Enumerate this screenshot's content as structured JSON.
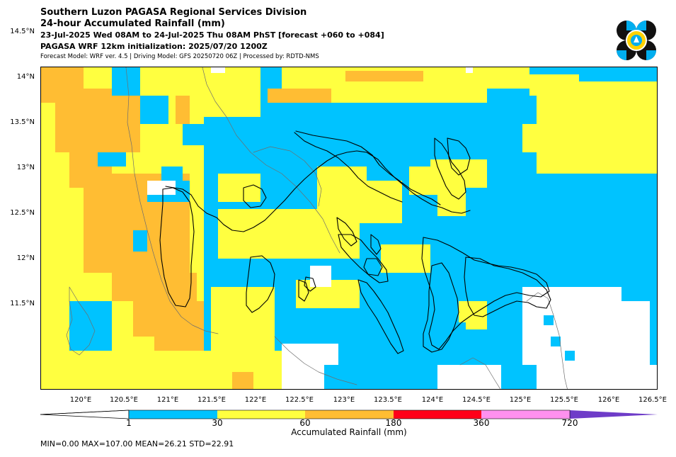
{
  "header": {
    "line1": "Southern Luzon PAGASA Regional Services Division",
    "line2": "24-hour Accumulated Rainfall (mm)",
    "line3": "23-Jul-2025 Wed 08AM to 24-Jul-2025 Thu 08AM PhST [forecast +060 to +084]",
    "line4": "PAGASA WRF 12km initialization: 2025/07/20 1200Z",
    "line5": "Forecast Model: WRF ver. 4.5 | Driving Model: GFS 20250720 06Z | Processed by: RDTD-NMS"
  },
  "map": {
    "lat_labels": [
      "14.5°N",
      "14°N",
      "13.5°N",
      "13°N",
      "12.5°N",
      "12°N",
      "11.5°N"
    ],
    "lon_labels": [
      "120°E",
      "120.5°E",
      "121°E",
      "121.5°E",
      "122°E",
      "122.5°E",
      "123°E",
      "123.5°E",
      "124°E",
      "124.5°E",
      "125°E",
      "125.5°E",
      "126°E",
      "126.5°E"
    ],
    "colors": {
      "none": "#ffffff",
      "light": "#00c3ff",
      "moderate": "#ffff40",
      "heavy": "#ffbd33",
      "coast": "#000000",
      "minor_coast": "#6e6e6e"
    }
  },
  "colorbar": {
    "ticks": [
      "1",
      "30",
      "60",
      "180",
      "360",
      "720"
    ],
    "colors": [
      "#00c3ff",
      "#ffff40",
      "#ffbd33",
      "#ff0019",
      "#ff91ef",
      "#6e3cc8"
    ],
    "label": "Accumulated Rainfall (mm)"
  },
  "stats": {
    "text": "MIN=0.00   MAX=107.00   MEAN=26.21   STD=22.91"
  },
  "logo": {
    "name": "pagasa-logo",
    "colors": [
      "#111111",
      "#00aeef",
      "#ffd200"
    ]
  }
}
